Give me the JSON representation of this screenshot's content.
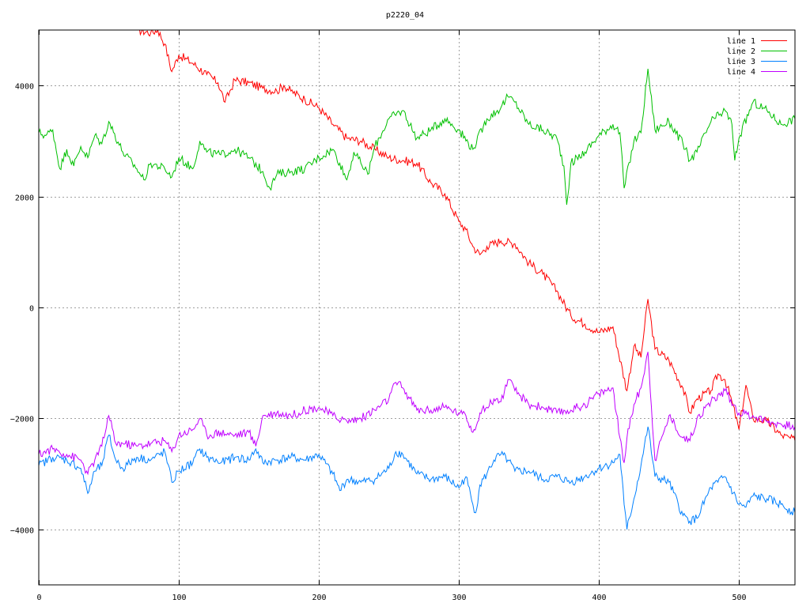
{
  "chart_data": {
    "type": "line",
    "title": "p2220_04",
    "xlabel": "",
    "ylabel": "",
    "xlim": [
      0,
      540
    ],
    "ylim": [
      -5000,
      5000
    ],
    "xticks": [
      0,
      100,
      200,
      300,
      400,
      500
    ],
    "yticks": [
      -4000,
      -2000,
      0,
      2000,
      4000
    ],
    "grid": true,
    "legend_position": "top-right",
    "series": [
      {
        "name": "line 1",
        "color": "#ff0000",
        "points": [
          [
            70,
            5000
          ],
          [
            80,
            4950
          ],
          [
            85,
            5000
          ],
          [
            90,
            4750
          ],
          [
            95,
            4250
          ],
          [
            100,
            4550
          ],
          [
            110,
            4400
          ],
          [
            120,
            4200
          ],
          [
            128,
            4050
          ],
          [
            133,
            3700
          ],
          [
            140,
            4100
          ],
          [
            150,
            4050
          ],
          [
            160,
            3950
          ],
          [
            170,
            3900
          ],
          [
            175,
            4000
          ],
          [
            180,
            3900
          ],
          [
            190,
            3750
          ],
          [
            200,
            3600
          ],
          [
            210,
            3300
          ],
          [
            220,
            3050
          ],
          [
            230,
            3000
          ],
          [
            240,
            2850
          ],
          [
            250,
            2700
          ],
          [
            260,
            2650
          ],
          [
            270,
            2600
          ],
          [
            280,
            2250
          ],
          [
            290,
            2050
          ],
          [
            300,
            1550
          ],
          [
            305,
            1400
          ],
          [
            310,
            1100
          ],
          [
            315,
            950
          ],
          [
            320,
            1100
          ],
          [
            330,
            1200
          ],
          [
            340,
            1150
          ],
          [
            350,
            800
          ],
          [
            360,
            600
          ],
          [
            370,
            300
          ],
          [
            380,
            -150
          ],
          [
            390,
            -300
          ],
          [
            400,
            -450
          ],
          [
            410,
            -350
          ],
          [
            420,
            -1500
          ],
          [
            425,
            -700
          ],
          [
            430,
            -900
          ],
          [
            435,
            150
          ],
          [
            440,
            -750
          ],
          [
            450,
            -950
          ],
          [
            460,
            -1450
          ],
          [
            465,
            -1900
          ],
          [
            470,
            -1650
          ],
          [
            480,
            -1500
          ],
          [
            485,
            -1200
          ],
          [
            490,
            -1300
          ],
          [
            495,
            -1700
          ],
          [
            500,
            -2200
          ],
          [
            505,
            -1400
          ],
          [
            510,
            -2000
          ],
          [
            520,
            -2050
          ],
          [
            530,
            -2300
          ],
          [
            540,
            -2400
          ]
        ]
      },
      {
        "name": "line 2",
        "color": "#00c000",
        "points": [
          [
            0,
            3150
          ],
          [
            5,
            3100
          ],
          [
            10,
            3200
          ],
          [
            15,
            2500
          ],
          [
            20,
            2850
          ],
          [
            25,
            2550
          ],
          [
            30,
            2900
          ],
          [
            35,
            2700
          ],
          [
            40,
            3100
          ],
          [
            45,
            2950
          ],
          [
            50,
            3350
          ],
          [
            60,
            2800
          ],
          [
            70,
            2500
          ],
          [
            75,
            2300
          ],
          [
            80,
            2600
          ],
          [
            90,
            2500
          ],
          [
            95,
            2350
          ],
          [
            100,
            2700
          ],
          [
            110,
            2500
          ],
          [
            115,
            3000
          ],
          [
            120,
            2800
          ],
          [
            130,
            2750
          ],
          [
            140,
            2850
          ],
          [
            150,
            2700
          ],
          [
            160,
            2450
          ],
          [
            165,
            2150
          ],
          [
            170,
            2400
          ],
          [
            180,
            2450
          ],
          [
            190,
            2500
          ],
          [
            200,
            2700
          ],
          [
            210,
            2850
          ],
          [
            215,
            2600
          ],
          [
            220,
            2300
          ],
          [
            225,
            2800
          ],
          [
            230,
            2600
          ],
          [
            235,
            2400
          ],
          [
            240,
            2900
          ],
          [
            250,
            3400
          ],
          [
            260,
            3550
          ],
          [
            270,
            3050
          ],
          [
            280,
            3200
          ],
          [
            290,
            3400
          ],
          [
            300,
            3200
          ],
          [
            310,
            2850
          ],
          [
            320,
            3400
          ],
          [
            330,
            3600
          ],
          [
            335,
            3800
          ],
          [
            340,
            3700
          ],
          [
            350,
            3300
          ],
          [
            360,
            3200
          ],
          [
            370,
            3050
          ],
          [
            375,
            2550
          ],
          [
            377,
            1850
          ],
          [
            380,
            2600
          ],
          [
            390,
            2800
          ],
          [
            400,
            3100
          ],
          [
            410,
            3300
          ],
          [
            415,
            3150
          ],
          [
            418,
            2150
          ],
          [
            425,
            3000
          ],
          [
            430,
            3150
          ],
          [
            435,
            4300
          ],
          [
            440,
            3200
          ],
          [
            450,
            3350
          ],
          [
            460,
            2950
          ],
          [
            465,
            2650
          ],
          [
            470,
            2800
          ],
          [
            480,
            3350
          ],
          [
            490,
            3550
          ],
          [
            495,
            3300
          ],
          [
            497,
            2650
          ],
          [
            500,
            3050
          ],
          [
            510,
            3700
          ],
          [
            520,
            3550
          ],
          [
            530,
            3300
          ],
          [
            540,
            3400
          ]
        ]
      },
      {
        "name": "line 3",
        "color": "#0080ff",
        "points": [
          [
            0,
            -2850
          ],
          [
            10,
            -2700
          ],
          [
            20,
            -2750
          ],
          [
            30,
            -2900
          ],
          [
            35,
            -3350
          ],
          [
            40,
            -2950
          ],
          [
            45,
            -2850
          ],
          [
            50,
            -2300
          ],
          [
            55,
            -2750
          ],
          [
            60,
            -2900
          ],
          [
            70,
            -2700
          ],
          [
            80,
            -2750
          ],
          [
            90,
            -2600
          ],
          [
            95,
            -3150
          ],
          [
            100,
            -2950
          ],
          [
            110,
            -2800
          ],
          [
            115,
            -2550
          ],
          [
            120,
            -2700
          ],
          [
            130,
            -2800
          ],
          [
            140,
            -2700
          ],
          [
            150,
            -2750
          ],
          [
            155,
            -2550
          ],
          [
            160,
            -2800
          ],
          [
            170,
            -2750
          ],
          [
            180,
            -2700
          ],
          [
            190,
            -2750
          ],
          [
            200,
            -2650
          ],
          [
            210,
            -3000
          ],
          [
            215,
            -3300
          ],
          [
            220,
            -3100
          ],
          [
            230,
            -3150
          ],
          [
            240,
            -3100
          ],
          [
            250,
            -2900
          ],
          [
            255,
            -2600
          ],
          [
            260,
            -2650
          ],
          [
            270,
            -3000
          ],
          [
            280,
            -3100
          ],
          [
            290,
            -3050
          ],
          [
            300,
            -3250
          ],
          [
            305,
            -3050
          ],
          [
            310,
            -3550
          ],
          [
            312,
            -3700
          ],
          [
            315,
            -3200
          ],
          [
            320,
            -3000
          ],
          [
            325,
            -2750
          ],
          [
            330,
            -2650
          ],
          [
            335,
            -2750
          ],
          [
            340,
            -2950
          ],
          [
            350,
            -2950
          ],
          [
            360,
            -3100
          ],
          [
            370,
            -3050
          ],
          [
            380,
            -3150
          ],
          [
            390,
            -3050
          ],
          [
            400,
            -2900
          ],
          [
            410,
            -2800
          ],
          [
            415,
            -2650
          ],
          [
            418,
            -3550
          ],
          [
            420,
            -4000
          ],
          [
            425,
            -3450
          ],
          [
            430,
            -2850
          ],
          [
            435,
            -2150
          ],
          [
            440,
            -3050
          ],
          [
            450,
            -3150
          ],
          [
            460,
            -3750
          ],
          [
            465,
            -3850
          ],
          [
            470,
            -3800
          ],
          [
            480,
            -3250
          ],
          [
            485,
            -3150
          ],
          [
            490,
            -3050
          ],
          [
            500,
            -3550
          ],
          [
            505,
            -3600
          ],
          [
            510,
            -3400
          ],
          [
            520,
            -3450
          ],
          [
            530,
            -3550
          ],
          [
            540,
            -3700
          ]
        ]
      },
      {
        "name": "line 4",
        "color": "#c000ff",
        "points": [
          [
            0,
            -2650
          ],
          [
            10,
            -2550
          ],
          [
            20,
            -2650
          ],
          [
            30,
            -2750
          ],
          [
            35,
            -3000
          ],
          [
            40,
            -2750
          ],
          [
            45,
            -2500
          ],
          [
            50,
            -1950
          ],
          [
            55,
            -2450
          ],
          [
            60,
            -2450
          ],
          [
            70,
            -2500
          ],
          [
            80,
            -2450
          ],
          [
            90,
            -2400
          ],
          [
            95,
            -2600
          ],
          [
            100,
            -2300
          ],
          [
            110,
            -2200
          ],
          [
            115,
            -2000
          ],
          [
            120,
            -2300
          ],
          [
            130,
            -2250
          ],
          [
            140,
            -2300
          ],
          [
            150,
            -2250
          ],
          [
            155,
            -2500
          ],
          [
            160,
            -1950
          ],
          [
            170,
            -1900
          ],
          [
            180,
            -1950
          ],
          [
            190,
            -1850
          ],
          [
            200,
            -1800
          ],
          [
            210,
            -1950
          ],
          [
            220,
            -2050
          ],
          [
            230,
            -2000
          ],
          [
            240,
            -1850
          ],
          [
            250,
            -1650
          ],
          [
            255,
            -1350
          ],
          [
            260,
            -1450
          ],
          [
            270,
            -1850
          ],
          [
            280,
            -1850
          ],
          [
            290,
            -1800
          ],
          [
            300,
            -1900
          ],
          [
            305,
            -1950
          ],
          [
            310,
            -2250
          ],
          [
            315,
            -1900
          ],
          [
            320,
            -1800
          ],
          [
            325,
            -1650
          ],
          [
            330,
            -1700
          ],
          [
            335,
            -1300
          ],
          [
            340,
            -1500
          ],
          [
            350,
            -1750
          ],
          [
            360,
            -1800
          ],
          [
            370,
            -1900
          ],
          [
            380,
            -1850
          ],
          [
            390,
            -1750
          ],
          [
            400,
            -1550
          ],
          [
            410,
            -1450
          ],
          [
            415,
            -2350
          ],
          [
            418,
            -2800
          ],
          [
            420,
            -2350
          ],
          [
            425,
            -1750
          ],
          [
            430,
            -1450
          ],
          [
            435,
            -800
          ],
          [
            440,
            -2750
          ],
          [
            450,
            -1950
          ],
          [
            460,
            -2350
          ],
          [
            465,
            -2400
          ],
          [
            470,
            -2000
          ],
          [
            480,
            -1700
          ],
          [
            490,
            -1500
          ],
          [
            500,
            -1900
          ],
          [
            510,
            -1950
          ],
          [
            520,
            -2050
          ],
          [
            530,
            -2100
          ],
          [
            540,
            -2150
          ]
        ]
      }
    ]
  }
}
